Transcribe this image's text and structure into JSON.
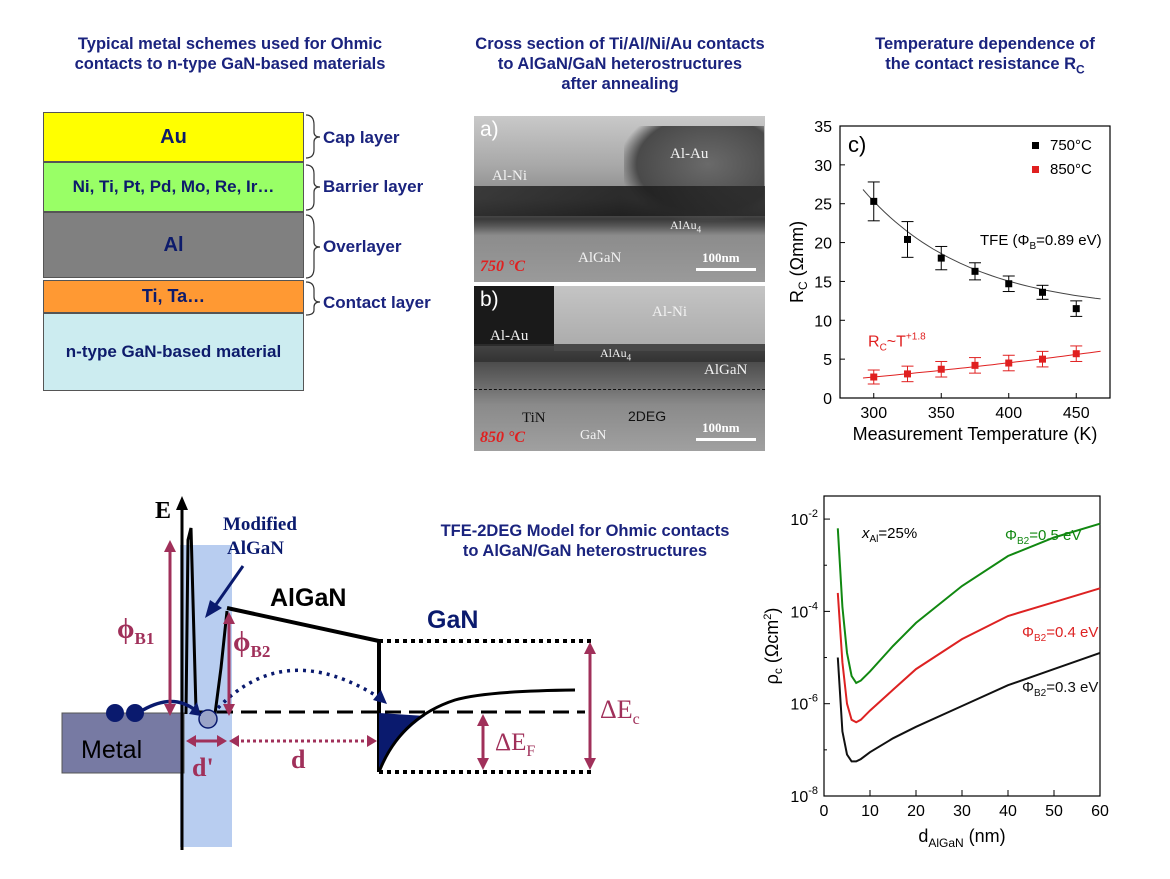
{
  "headings": {
    "left": [
      "Typical metal schemes used for Ohmic",
      "contacts to n-type GaN-based materials"
    ],
    "middle": [
      "Cross section of Ti/Al/Ni/Au contacts",
      "to AlGaN/GaN heterostructures",
      "after annealing"
    ],
    "right": [
      "Temperature dependence of",
      "the contact resistance R"
    ],
    "right_sub": "C"
  },
  "layers": [
    {
      "label": "Au",
      "role": "Cap layer",
      "color": "#ffff00"
    },
    {
      "label": "Ni, Ti, Pt, Pd, Mo, Re, Ir…",
      "role": "Barrier layer",
      "color": "#99ff66"
    },
    {
      "label": "Al",
      "role": "Overlayer",
      "color": "#808080"
    },
    {
      "label": "Ti, Ta…",
      "role": "Contact layer",
      "color": "#ff9933"
    },
    {
      "label": "n-type GaN-based material",
      "role": "",
      "color": "#ccecf0"
    }
  ],
  "tem": {
    "a": {
      "panel": "a)",
      "labels": [
        "Al-Ni",
        "Al-Au",
        "AlAu",
        "AlGaN"
      ],
      "alau_sub": "4",
      "temp": "750 °C",
      "scale": "100nm"
    },
    "b": {
      "panel": "b)",
      "labels": [
        "Al-Ni",
        "Al-Au",
        "AlAu",
        "AlGaN",
        "TiN",
        "2DEG",
        "GaN"
      ],
      "alau_sub": "4",
      "temp": "850 °C",
      "scale": "100nm"
    }
  },
  "band_diagram": {
    "title": [
      "TFE-2DEG Model for Ohmic contacts",
      "to AlGaN/GaN heterostructures"
    ],
    "E": "E",
    "modified": [
      "Modified",
      "AlGaN"
    ],
    "algan": "AlGaN",
    "gan": "GaN",
    "metal": "Metal",
    "phi_b1": "ϕ",
    "phi_b1_sub": "B1",
    "phi_b2": "ϕ",
    "phi_b2_sub": "B2",
    "d_prime": "d'",
    "d": "d",
    "delta_ef": "ΔE",
    "delta_ef_sub": "F",
    "delta_ec": "ΔE",
    "delta_ec_sub": "c",
    "colors": {
      "maroon": "#a0305a",
      "navy": "#0a1a6e",
      "blue_fill": "#b8cdf0"
    }
  },
  "chart_data": [
    {
      "type": "scatter",
      "panel_label": "c)",
      "xlabel": "Measurement Temperature (K)",
      "ylabel": "R",
      "ylabel_sub": "C",
      "ylabel_unit": "(Ωmm)",
      "xlim": [
        275,
        475
      ],
      "ylim": [
        0,
        35
      ],
      "xticks": [
        300,
        350,
        400,
        450
      ],
      "yticks": [
        0,
        5,
        10,
        15,
        20,
        25,
        30,
        35
      ],
      "series": [
        {
          "name": "750°C",
          "color": "#000000",
          "x": [
            300,
            325,
            350,
            375,
            400,
            425,
            450
          ],
          "y": [
            25.3,
            20.4,
            18.0,
            16.3,
            14.7,
            13.6,
            11.5
          ],
          "err": [
            2.5,
            2.3,
            1.5,
            1.1,
            1.0,
            0.9,
            1.0
          ]
        },
        {
          "name": "850°C",
          "color": "#e02020",
          "x": [
            300,
            325,
            350,
            375,
            400,
            425,
            450
          ],
          "y": [
            2.7,
            3.1,
            3.7,
            4.2,
            4.5,
            5.0,
            5.7
          ],
          "err": [
            0.9,
            1.0,
            1.0,
            1.0,
            1.0,
            1.0,
            1.0
          ]
        }
      ],
      "annotations": [
        {
          "text": "TFE (Φ",
          "sub": "B",
          "text2": "=0.89 eV)"
        },
        {
          "text": "R",
          "sub": "C",
          "text2": "~T",
          "sup": "+1.8"
        }
      ]
    },
    {
      "type": "line",
      "xlabel": "d",
      "xlabel_sub": "AlGaN",
      "xlabel_unit": "(nm)",
      "ylabel": "ρ",
      "ylabel_sub": "c",
      "ylabel_unit": "(Ωcm",
      "ylabel_sup": "2",
      "ylabel_close": ")",
      "xlim": [
        0,
        60
      ],
      "ylim_log10": [
        -8,
        -1.5
      ],
      "xticks": [
        0,
        10,
        20,
        30,
        40,
        50,
        60
      ],
      "yticks_exp": [
        -8,
        -6,
        -4,
        -2
      ],
      "annotation": {
        "pre": "x",
        "sub": "Al",
        "post": "=25%"
      },
      "series": [
        {
          "name": "Φ",
          "name_sub": "B2",
          "name_post": "=0.5 eV",
          "color": "#118811",
          "x": [
            3,
            4,
            5,
            6,
            7,
            8,
            10,
            15,
            20,
            30,
            40,
            50,
            60
          ],
          "log10y": [
            -2.2,
            -3.9,
            -4.9,
            -5.4,
            -5.55,
            -5.5,
            -5.3,
            -4.75,
            -4.25,
            -3.45,
            -2.8,
            -2.4,
            -2.1
          ]
        },
        {
          "name": "Φ",
          "name_sub": "B2",
          "name_post": "=0.4 eV",
          "color": "#dd2222",
          "x": [
            3,
            4,
            5,
            6,
            7,
            8,
            10,
            15,
            20,
            30,
            40,
            50,
            60
          ],
          "log10y": [
            -3.6,
            -5.1,
            -6.0,
            -6.35,
            -6.4,
            -6.35,
            -6.15,
            -5.7,
            -5.25,
            -4.6,
            -4.1,
            -3.8,
            -3.5
          ]
        },
        {
          "name": "Φ",
          "name_sub": "B2",
          "name_post": "=0.3 eV",
          "color": "#111111",
          "x": [
            3,
            4,
            5,
            6,
            7,
            8,
            10,
            15,
            20,
            30,
            40,
            50,
            60
          ],
          "log10y": [
            -5.0,
            -6.6,
            -7.1,
            -7.25,
            -7.25,
            -7.2,
            -7.05,
            -6.75,
            -6.5,
            -6.05,
            -5.6,
            -5.25,
            -4.9
          ]
        }
      ]
    }
  ]
}
